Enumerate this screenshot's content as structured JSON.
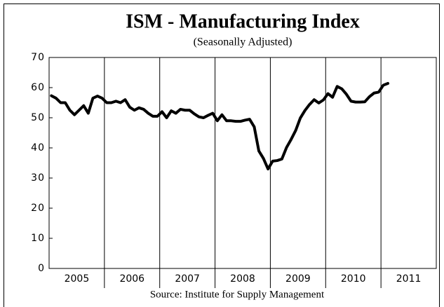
{
  "chart_data": {
    "type": "line",
    "title": "ISM - Manufacturing Index",
    "subtitle": "(Seasonally Adjusted)",
    "source": "Source: Institute for Supply Management",
    "categories": [
      "2005",
      null,
      null,
      null,
      null,
      null,
      null,
      null,
      null,
      null,
      null,
      null,
      "2006",
      null,
      null,
      null,
      null,
      null,
      null,
      null,
      null,
      null,
      null,
      null,
      "2007",
      null,
      null,
      null,
      null,
      null,
      null,
      null,
      null,
      null,
      null,
      null,
      "2008",
      null,
      null,
      null,
      null,
      null,
      null,
      null,
      null,
      null,
      null,
      null,
      "2009",
      null,
      null,
      null,
      null,
      null,
      null,
      null,
      null,
      null,
      null,
      null,
      "2010",
      null,
      null,
      null,
      null,
      null,
      null,
      null,
      null,
      null,
      null,
      null,
      "2011",
      null,
      null,
      null,
      null,
      null,
      null,
      null,
      null,
      null,
      null,
      null
    ],
    "series": [
      {
        "name": "ISM Manufacturing Index",
        "color": "#000000",
        "values": [
          57.3,
          56.5,
          55,
          55,
          52.5,
          51,
          52.5,
          54,
          51.5,
          56.5,
          57.2,
          56.5,
          55,
          55,
          55.5,
          55,
          56,
          53.5,
          52.5,
          53.3,
          52.8,
          51.5,
          50.5,
          50.5,
          52,
          50,
          52.3,
          51.5,
          52.8,
          52.5,
          52.5,
          51.3,
          50.3,
          50,
          50.8,
          51.5,
          49,
          51,
          49,
          49,
          48.8,
          48.8,
          49.2,
          49.5,
          47,
          39,
          36.5,
          33,
          35.6,
          35.8,
          36.3,
          40.1,
          42.8,
          45.8,
          49.9,
          52.4,
          54.4,
          56,
          54.9,
          55.9,
          58,
          56.8,
          60.4,
          59.6,
          57.8,
          55.5,
          55.2,
          55.2,
          55.3,
          57,
          58.2,
          58.5,
          60.8,
          61.4,
          null,
          null,
          null,
          null,
          null,
          null,
          null,
          null,
          null,
          null
        ]
      }
    ],
    "ylim": [
      0,
      70
    ],
    "yticks": [
      0,
      10,
      20,
      30,
      40,
      50,
      60,
      70
    ],
    "grid": false
  }
}
